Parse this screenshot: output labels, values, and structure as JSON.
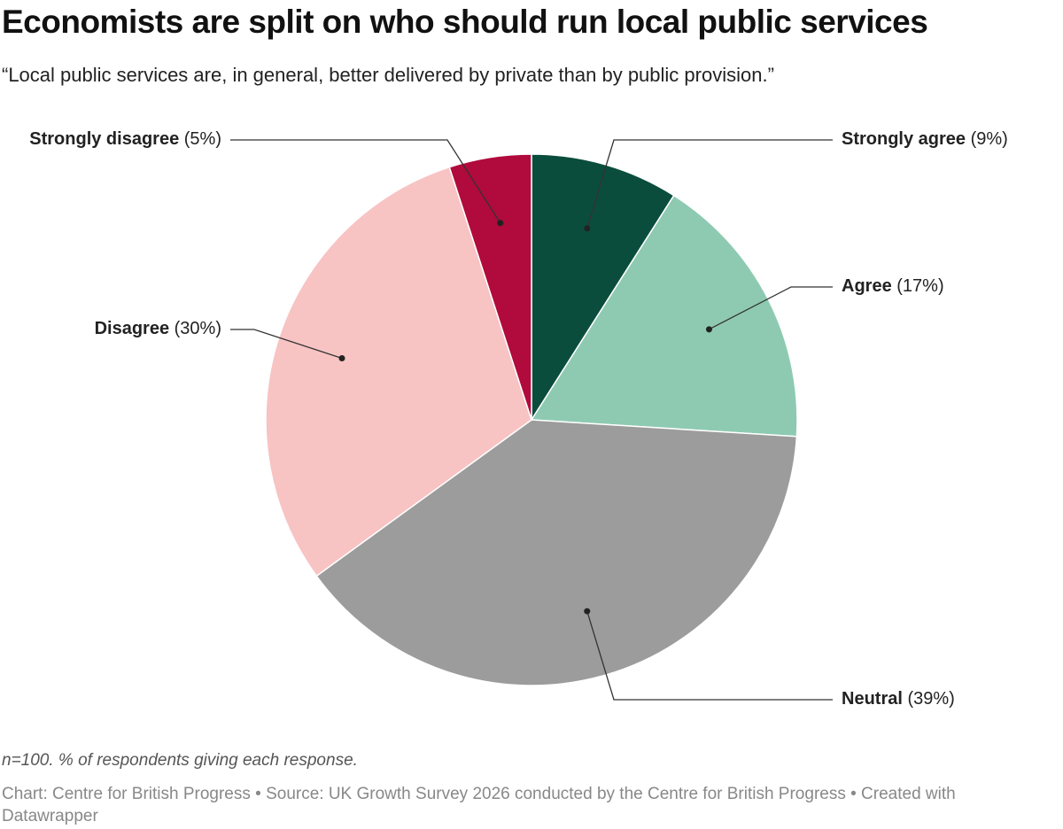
{
  "chart_data": {
    "type": "pie",
    "title": "Economists are split on who should run local public services",
    "subtitle": "“Local public services are, in general, better delivered by private than by public provision.”",
    "categories": [
      "Strongly agree",
      "Agree",
      "Neutral",
      "Disagree",
      "Strongly disagree"
    ],
    "values": [
      9,
      17,
      39,
      30,
      5
    ],
    "value_labels": [
      "(9%)",
      "(17%)",
      "(39%)",
      "(30%)",
      "(5%)"
    ],
    "colors": [
      "#0b4d3c",
      "#8ecab2",
      "#9d9c9c",
      "#f8c3c3",
      "#b10a3c"
    ],
    "note": "n=100. % of respondents giving each response.",
    "source": "Chart: Centre for British Progress • Source: UK Growth Survey 2026 conducted by the Centre for British Progress • Created with Datawrapper"
  }
}
